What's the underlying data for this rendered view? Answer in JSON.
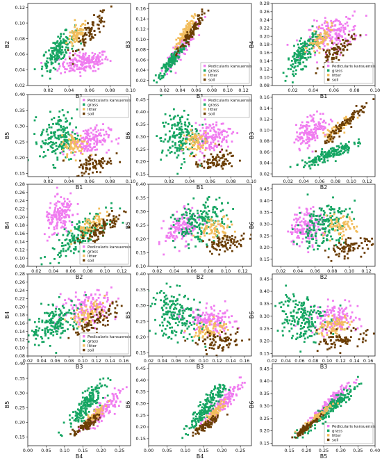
{
  "legend_labels": [
    "Pedicularis kansuensis",
    "grass",
    "litter",
    "soil"
  ],
  "colors": {
    "Pedicularis kansuensis": "#f07cf0",
    "grass": "#15a562",
    "litter": "#f2bd5c",
    "soil": "#6b3e05"
  },
  "chart_data": [
    {
      "type": "scatter",
      "xlabel": "B1",
      "ylabel": "B2",
      "xlim": [
        0.0,
        0.1
      ],
      "ylim": [
        0.02,
        0.125
      ],
      "xticks": [
        "0.02",
        "0.04",
        "0.06",
        "0.08",
        "0.10"
      ],
      "yticks": [
        "0.02",
        "0.04",
        "0.06",
        "0.08",
        "0.10",
        "0.12"
      ],
      "legend": null,
      "grid": false,
      "series": [
        {
          "name": "Pedicularis kansuensis",
          "cx": 0.055,
          "cy": 0.05,
          "sx": 0.012,
          "sy": 0.007,
          "r": 0.35,
          "n": 180
        },
        {
          "name": "grass",
          "cx": 0.03,
          "cy": 0.065,
          "sx": 0.008,
          "sy": 0.012,
          "r": 0.75,
          "n": 160
        },
        {
          "name": "litter",
          "cx": 0.048,
          "cy": 0.085,
          "sx": 0.005,
          "sy": 0.008,
          "r": 0.6,
          "n": 70
        },
        {
          "name": "soil",
          "cx": 0.062,
          "cy": 0.09,
          "sx": 0.008,
          "sy": 0.013,
          "r": 0.85,
          "n": 80
        }
      ]
    },
    {
      "type": "scatter",
      "xlabel": "B1",
      "ylabel": "B3",
      "xlim": [
        0.0,
        0.13
      ],
      "ylim": [
        0.01,
        0.17
      ],
      "xticks": [
        "0.02",
        "0.04",
        "0.06",
        "0.08",
        "0.10",
        "0.12"
      ],
      "yticks": [
        "0.02",
        "0.04",
        "0.06",
        "0.08",
        "0.10",
        "0.12",
        "0.14",
        "0.16"
      ],
      "legend": "bottom-right",
      "grid": false,
      "series": [
        {
          "name": "Pedicularis kansuensis",
          "cx": 0.04,
          "cy": 0.08,
          "sx": 0.01,
          "sy": 0.02,
          "r": 0.9,
          "n": 100
        },
        {
          "name": "grass",
          "cx": 0.03,
          "cy": 0.06,
          "sx": 0.008,
          "sy": 0.016,
          "r": 0.9,
          "n": 150
        },
        {
          "name": "litter",
          "cx": 0.045,
          "cy": 0.11,
          "sx": 0.006,
          "sy": 0.016,
          "r": 0.9,
          "n": 80
        },
        {
          "name": "soil",
          "cx": 0.055,
          "cy": 0.115,
          "sx": 0.009,
          "sy": 0.022,
          "r": 0.95,
          "n": 90
        }
      ]
    },
    {
      "type": "scatter",
      "xlabel": "B1",
      "ylabel": "B4",
      "xlim": [
        0.0,
        0.1
      ],
      "ylim": [
        0.08,
        0.28
      ],
      "xticks": [
        "0.02",
        "0.04",
        "0.06",
        "0.08",
        "0.10"
      ],
      "yticks": [
        "0.08",
        "0.10",
        "0.12",
        "0.14",
        "0.16",
        "0.18",
        "0.20",
        "0.22",
        "0.24",
        "0.26",
        "0.28"
      ],
      "legend": "bottom-right",
      "grid": false,
      "series": [
        {
          "name": "Pedicularis kansuensis",
          "cx": 0.06,
          "cy": 0.205,
          "sx": 0.012,
          "sy": 0.022,
          "r": 0.35,
          "n": 180
        },
        {
          "name": "grass",
          "cx": 0.03,
          "cy": 0.16,
          "sx": 0.008,
          "sy": 0.025,
          "r": 0.75,
          "n": 160
        },
        {
          "name": "litter",
          "cx": 0.048,
          "cy": 0.19,
          "sx": 0.006,
          "sy": 0.015,
          "r": 0.5,
          "n": 70
        },
        {
          "name": "soil",
          "cx": 0.062,
          "cy": 0.16,
          "sx": 0.008,
          "sy": 0.02,
          "r": 0.8,
          "n": 80
        }
      ]
    },
    {
      "type": "scatter",
      "xlabel": "B1",
      "ylabel": "B5",
      "xlim": [
        0.0,
        0.1
      ],
      "ylim": [
        0.14,
        0.4
      ],
      "xticks": [
        "0.02",
        "0.04",
        "0.06",
        "0.08",
        "0.10"
      ],
      "yticks": [
        "0.15",
        "0.20",
        "0.25",
        "0.30",
        "0.35",
        "0.40"
      ],
      "legend": "top-right",
      "grid": false,
      "series": [
        {
          "name": "Pedicularis kansuensis",
          "cx": 0.06,
          "cy": 0.255,
          "sx": 0.01,
          "sy": 0.022,
          "r": 0.2,
          "n": 150
        },
        {
          "name": "grass",
          "cx": 0.03,
          "cy": 0.265,
          "sx": 0.009,
          "sy": 0.04,
          "r": 0.1,
          "n": 170
        },
        {
          "name": "litter",
          "cx": 0.045,
          "cy": 0.24,
          "sx": 0.006,
          "sy": 0.02,
          "r": 0.2,
          "n": 70
        },
        {
          "name": "soil",
          "cx": 0.065,
          "cy": 0.18,
          "sx": 0.009,
          "sy": 0.018,
          "r": 0.4,
          "n": 80
        }
      ]
    },
    {
      "type": "scatter",
      "xlabel": "B1",
      "ylabel": "B6",
      "xlim": [
        0.0,
        0.1
      ],
      "ylim": [
        0.14,
        0.47
      ],
      "xticks": [
        "0.02",
        "0.04",
        "0.06",
        "0.08",
        "0.10"
      ],
      "yticks": [
        "0.15",
        "0.20",
        "0.25",
        "0.30",
        "0.35",
        "0.40",
        "0.45"
      ],
      "legend": "top-right",
      "grid": false,
      "series": [
        {
          "name": "Pedicularis kansuensis",
          "cx": 0.06,
          "cy": 0.3,
          "sx": 0.01,
          "sy": 0.03,
          "r": 0.2,
          "n": 150
        },
        {
          "name": "grass",
          "cx": 0.03,
          "cy": 0.3,
          "sx": 0.009,
          "sy": 0.05,
          "r": 0.1,
          "n": 170
        },
        {
          "name": "litter",
          "cx": 0.045,
          "cy": 0.28,
          "sx": 0.006,
          "sy": 0.025,
          "r": 0.2,
          "n": 70
        },
        {
          "name": "soil",
          "cx": 0.065,
          "cy": 0.2,
          "sx": 0.01,
          "sy": 0.02,
          "r": 0.4,
          "n": 80
        }
      ]
    },
    {
      "type": "scatter",
      "xlabel": "B2",
      "ylabel": "B3",
      "xlim": [
        0.0,
        0.13
      ],
      "ylim": [
        0.015,
        0.165
      ],
      "xticks": [
        "0.02",
        "0.04",
        "0.06",
        "0.08",
        "0.10",
        "0.12"
      ],
      "yticks": [
        "0.02",
        "0.04",
        "0.06",
        "0.08",
        "0.10",
        "0.12",
        "0.14",
        "0.16"
      ],
      "legend": null,
      "grid": false,
      "series": [
        {
          "name": "Pedicularis kansuensis",
          "cx": 0.05,
          "cy": 0.1,
          "sx": 0.01,
          "sy": 0.015,
          "r": 0.5,
          "n": 150
        },
        {
          "name": "grass",
          "cx": 0.07,
          "cy": 0.055,
          "sx": 0.016,
          "sy": 0.011,
          "r": 0.85,
          "n": 160
        },
        {
          "name": "litter",
          "cx": 0.085,
          "cy": 0.105,
          "sx": 0.01,
          "sy": 0.012,
          "r": 0.9,
          "n": 70
        },
        {
          "name": "soil",
          "cx": 0.095,
          "cy": 0.115,
          "sx": 0.014,
          "sy": 0.018,
          "r": 0.95,
          "n": 90
        }
      ]
    },
    {
      "type": "scatter",
      "xlabel": "B2",
      "ylabel": "B4",
      "xlim": [
        0.01,
        0.13
      ],
      "ylim": [
        0.08,
        0.28
      ],
      "xticks": [
        "0.02",
        "0.04",
        "0.06",
        "0.08",
        "0.10",
        "0.12"
      ],
      "yticks": [
        "0.08",
        "0.10",
        "0.12",
        "0.14",
        "0.16",
        "0.18",
        "0.20",
        "0.22",
        "0.24",
        "0.26",
        "0.28"
      ],
      "legend": "bottom-right",
      "grid": false,
      "series": [
        {
          "name": "Pedicularis kansuensis",
          "cx": 0.048,
          "cy": 0.2,
          "sx": 0.009,
          "sy": 0.025,
          "r": 0.4,
          "n": 150
        },
        {
          "name": "grass",
          "cx": 0.07,
          "cy": 0.155,
          "sx": 0.016,
          "sy": 0.025,
          "r": 0.75,
          "n": 170
        },
        {
          "name": "litter",
          "cx": 0.085,
          "cy": 0.18,
          "sx": 0.01,
          "sy": 0.015,
          "r": 0.6,
          "n": 70
        },
        {
          "name": "soil",
          "cx": 0.095,
          "cy": 0.17,
          "sx": 0.013,
          "sy": 0.02,
          "r": 0.8,
          "n": 90
        }
      ]
    },
    {
      "type": "scatter",
      "xlabel": "B2",
      "ylabel": "B5",
      "xlim": [
        0.01,
        0.13
      ],
      "ylim": [
        0.1,
        0.4
      ],
      "xticks": [
        "0.02",
        "0.04",
        "0.06",
        "0.08",
        "0.10",
        "0.12"
      ],
      "yticks": [
        "0.10",
        "0.15",
        "0.20",
        "0.25",
        "0.30",
        "0.35",
        "0.40"
      ],
      "legend": null,
      "grid": false,
      "series": [
        {
          "name": "Pedicularis kansuensis",
          "cx": 0.05,
          "cy": 0.24,
          "sx": 0.01,
          "sy": 0.03,
          "r": 0.3,
          "n": 150
        },
        {
          "name": "grass",
          "cx": 0.07,
          "cy": 0.26,
          "sx": 0.015,
          "sy": 0.04,
          "r": 0.3,
          "n": 180
        },
        {
          "name": "litter",
          "cx": 0.088,
          "cy": 0.24,
          "sx": 0.01,
          "sy": 0.02,
          "r": 0.3,
          "n": 70
        },
        {
          "name": "soil",
          "cx": 0.1,
          "cy": 0.185,
          "sx": 0.012,
          "sy": 0.015,
          "r": 0.3,
          "n": 80
        }
      ]
    },
    {
      "type": "scatter",
      "xlabel": "B2",
      "ylabel": "B6",
      "xlim": [
        0.01,
        0.13
      ],
      "ylim": [
        0.12,
        0.47
      ],
      "xticks": [
        "0.02",
        "0.04",
        "0.06",
        "0.08",
        "0.10",
        "0.12"
      ],
      "yticks": [
        "0.15",
        "0.20",
        "0.25",
        "0.30",
        "0.35",
        "0.40",
        "0.45"
      ],
      "legend": null,
      "grid": false,
      "series": [
        {
          "name": "Pedicularis kansuensis",
          "cx": 0.05,
          "cy": 0.29,
          "sx": 0.01,
          "sy": 0.04,
          "r": 0.3,
          "n": 150
        },
        {
          "name": "grass",
          "cx": 0.07,
          "cy": 0.3,
          "sx": 0.015,
          "sy": 0.05,
          "r": 0.3,
          "n": 180
        },
        {
          "name": "litter",
          "cx": 0.088,
          "cy": 0.28,
          "sx": 0.01,
          "sy": 0.025,
          "r": 0.3,
          "n": 70
        },
        {
          "name": "soil",
          "cx": 0.1,
          "cy": 0.2,
          "sx": 0.013,
          "sy": 0.02,
          "r": 0.4,
          "n": 80
        }
      ]
    },
    {
      "type": "scatter",
      "xlabel": "B3",
      "ylabel": "B4",
      "xlim": [
        0.02,
        0.17
      ],
      "ylim": [
        0.08,
        0.28
      ],
      "xticks": [
        "0.02",
        "0.04",
        "0.06",
        "0.08",
        "0.10",
        "0.12",
        "0.14",
        "0.16"
      ],
      "yticks": [
        "0.08",
        "0.10",
        "0.12",
        "0.14",
        "0.16",
        "0.18",
        "0.20",
        "0.22",
        "0.24",
        "0.26",
        "0.28"
      ],
      "legend": "bottom-right",
      "grid": false,
      "series": [
        {
          "name": "Pedicularis kansuensis",
          "cx": 0.11,
          "cy": 0.2,
          "sx": 0.02,
          "sy": 0.022,
          "r": 0.3,
          "n": 150
        },
        {
          "name": "grass",
          "cx": 0.06,
          "cy": 0.16,
          "sx": 0.018,
          "sy": 0.025,
          "r": 0.5,
          "n": 170
        },
        {
          "name": "litter",
          "cx": 0.11,
          "cy": 0.185,
          "sx": 0.012,
          "sy": 0.015,
          "r": 0.6,
          "n": 70
        },
        {
          "name": "soil",
          "cx": 0.12,
          "cy": 0.165,
          "sx": 0.018,
          "sy": 0.02,
          "r": 0.8,
          "n": 80
        }
      ]
    },
    {
      "type": "scatter",
      "xlabel": "B3",
      "ylabel": "B5",
      "xlim": [
        0.02,
        0.17
      ],
      "ylim": [
        0.14,
        0.4
      ],
      "xticks": [
        "0.02",
        "0.04",
        "0.06",
        "0.08",
        "0.10",
        "0.12",
        "0.14",
        "0.16"
      ],
      "yticks": [
        "0.15",
        "0.20",
        "0.25",
        "0.30",
        "0.35",
        "0.40"
      ],
      "legend": null,
      "grid": false,
      "series": [
        {
          "name": "Pedicularis kansuensis",
          "cx": 0.11,
          "cy": 0.25,
          "sx": 0.018,
          "sy": 0.02,
          "r": -0.1,
          "n": 150
        },
        {
          "name": "grass",
          "cx": 0.06,
          "cy": 0.27,
          "sx": 0.018,
          "sy": 0.04,
          "r": -0.2,
          "n": 180
        },
        {
          "name": "litter",
          "cx": 0.11,
          "cy": 0.225,
          "sx": 0.012,
          "sy": 0.015,
          "r": 0.2,
          "n": 70
        },
        {
          "name": "soil",
          "cx": 0.125,
          "cy": 0.185,
          "sx": 0.017,
          "sy": 0.015,
          "r": 0.3,
          "n": 80
        }
      ]
    },
    {
      "type": "scatter",
      "xlabel": "B3",
      "ylabel": "B6",
      "xlim": [
        0.02,
        0.17
      ],
      "ylim": [
        0.14,
        0.47
      ],
      "xticks": [
        "0.02",
        "0.04",
        "0.06",
        "0.08",
        "0.10",
        "0.12",
        "0.14",
        "0.16"
      ],
      "yticks": [
        "0.15",
        "0.20",
        "0.25",
        "0.30",
        "0.35",
        "0.40",
        "0.45"
      ],
      "legend": null,
      "grid": false,
      "series": [
        {
          "name": "Pedicularis kansuensis",
          "cx": 0.11,
          "cy": 0.29,
          "sx": 0.018,
          "sy": 0.03,
          "r": 0.0,
          "n": 150
        },
        {
          "name": "grass",
          "cx": 0.06,
          "cy": 0.3,
          "sx": 0.018,
          "sy": 0.05,
          "r": -0.1,
          "n": 180
        },
        {
          "name": "litter",
          "cx": 0.11,
          "cy": 0.26,
          "sx": 0.012,
          "sy": 0.02,
          "r": 0.3,
          "n": 70
        },
        {
          "name": "soil",
          "cx": 0.125,
          "cy": 0.205,
          "sx": 0.017,
          "sy": 0.02,
          "r": 0.4,
          "n": 80
        }
      ]
    },
    {
      "type": "scatter",
      "xlabel": "B4",
      "ylabel": "B5",
      "xlim": [
        0.0,
        0.28
      ],
      "ylim": [
        0.12,
        0.4
      ],
      "xticks": [
        "0.00",
        "0.05",
        "0.10",
        "0.15",
        "0.20",
        "0.25"
      ],
      "yticks": [
        "0.15",
        "0.20",
        "0.25",
        "0.30",
        "0.35",
        "0.40"
      ],
      "legend": null,
      "grid": false,
      "series": [
        {
          "name": "Pedicularis kansuensis",
          "cx": 0.2,
          "cy": 0.235,
          "sx": 0.025,
          "sy": 0.03,
          "r": 0.85,
          "n": 150
        },
        {
          "name": "grass",
          "cx": 0.16,
          "cy": 0.26,
          "sx": 0.025,
          "sy": 0.04,
          "r": 0.85,
          "n": 180
        },
        {
          "name": "litter",
          "cx": 0.18,
          "cy": 0.22,
          "sx": 0.015,
          "sy": 0.02,
          "r": 0.9,
          "n": 70
        },
        {
          "name": "soil",
          "cx": 0.16,
          "cy": 0.19,
          "sx": 0.018,
          "sy": 0.018,
          "r": 0.9,
          "n": 80
        }
      ]
    },
    {
      "type": "scatter",
      "xlabel": "B4",
      "ylabel": "B6",
      "xlim": [
        0.0,
        0.28
      ],
      "ylim": [
        0.12,
        0.47
      ],
      "xticks": [
        "0.00",
        "0.05",
        "0.10",
        "0.15",
        "0.20",
        "0.25"
      ],
      "yticks": [
        "0.15",
        "0.20",
        "0.25",
        "0.30",
        "0.35",
        "0.40",
        "0.45"
      ],
      "legend": null,
      "grid": false,
      "series": [
        {
          "name": "Pedicularis kansuensis",
          "cx": 0.2,
          "cy": 0.3,
          "sx": 0.025,
          "sy": 0.04,
          "r": 0.9,
          "n": 150
        },
        {
          "name": "grass",
          "cx": 0.16,
          "cy": 0.29,
          "sx": 0.025,
          "sy": 0.05,
          "r": 0.9,
          "n": 180
        },
        {
          "name": "litter",
          "cx": 0.18,
          "cy": 0.26,
          "sx": 0.015,
          "sy": 0.025,
          "r": 0.9,
          "n": 70
        },
        {
          "name": "soil",
          "cx": 0.16,
          "cy": 0.21,
          "sx": 0.018,
          "sy": 0.02,
          "r": 0.9,
          "n": 80
        }
      ]
    },
    {
      "type": "scatter",
      "xlabel": "B5",
      "ylabel": "B6",
      "xlim": [
        0.1,
        0.4
      ],
      "ylim": [
        0.14,
        0.47
      ],
      "xticks": [
        "0.15",
        "0.20",
        "0.25",
        "0.30",
        "0.35",
        "0.40"
      ],
      "yticks": [
        "0.15",
        "0.20",
        "0.25",
        "0.30",
        "0.35",
        "0.40",
        "0.45"
      ],
      "legend": "bottom-right",
      "grid": false,
      "series": [
        {
          "name": "Pedicularis kansuensis",
          "cx": 0.26,
          "cy": 0.3,
          "sx": 0.03,
          "sy": 0.04,
          "r": 0.95,
          "n": 150
        },
        {
          "name": "grass",
          "cx": 0.27,
          "cy": 0.29,
          "sx": 0.04,
          "sy": 0.05,
          "r": 0.95,
          "n": 180
        },
        {
          "name": "litter",
          "cx": 0.235,
          "cy": 0.26,
          "sx": 0.02,
          "sy": 0.025,
          "r": 0.95,
          "n": 70
        },
        {
          "name": "soil",
          "cx": 0.2,
          "cy": 0.215,
          "sx": 0.018,
          "sy": 0.02,
          "r": 0.95,
          "n": 80
        }
      ]
    }
  ]
}
